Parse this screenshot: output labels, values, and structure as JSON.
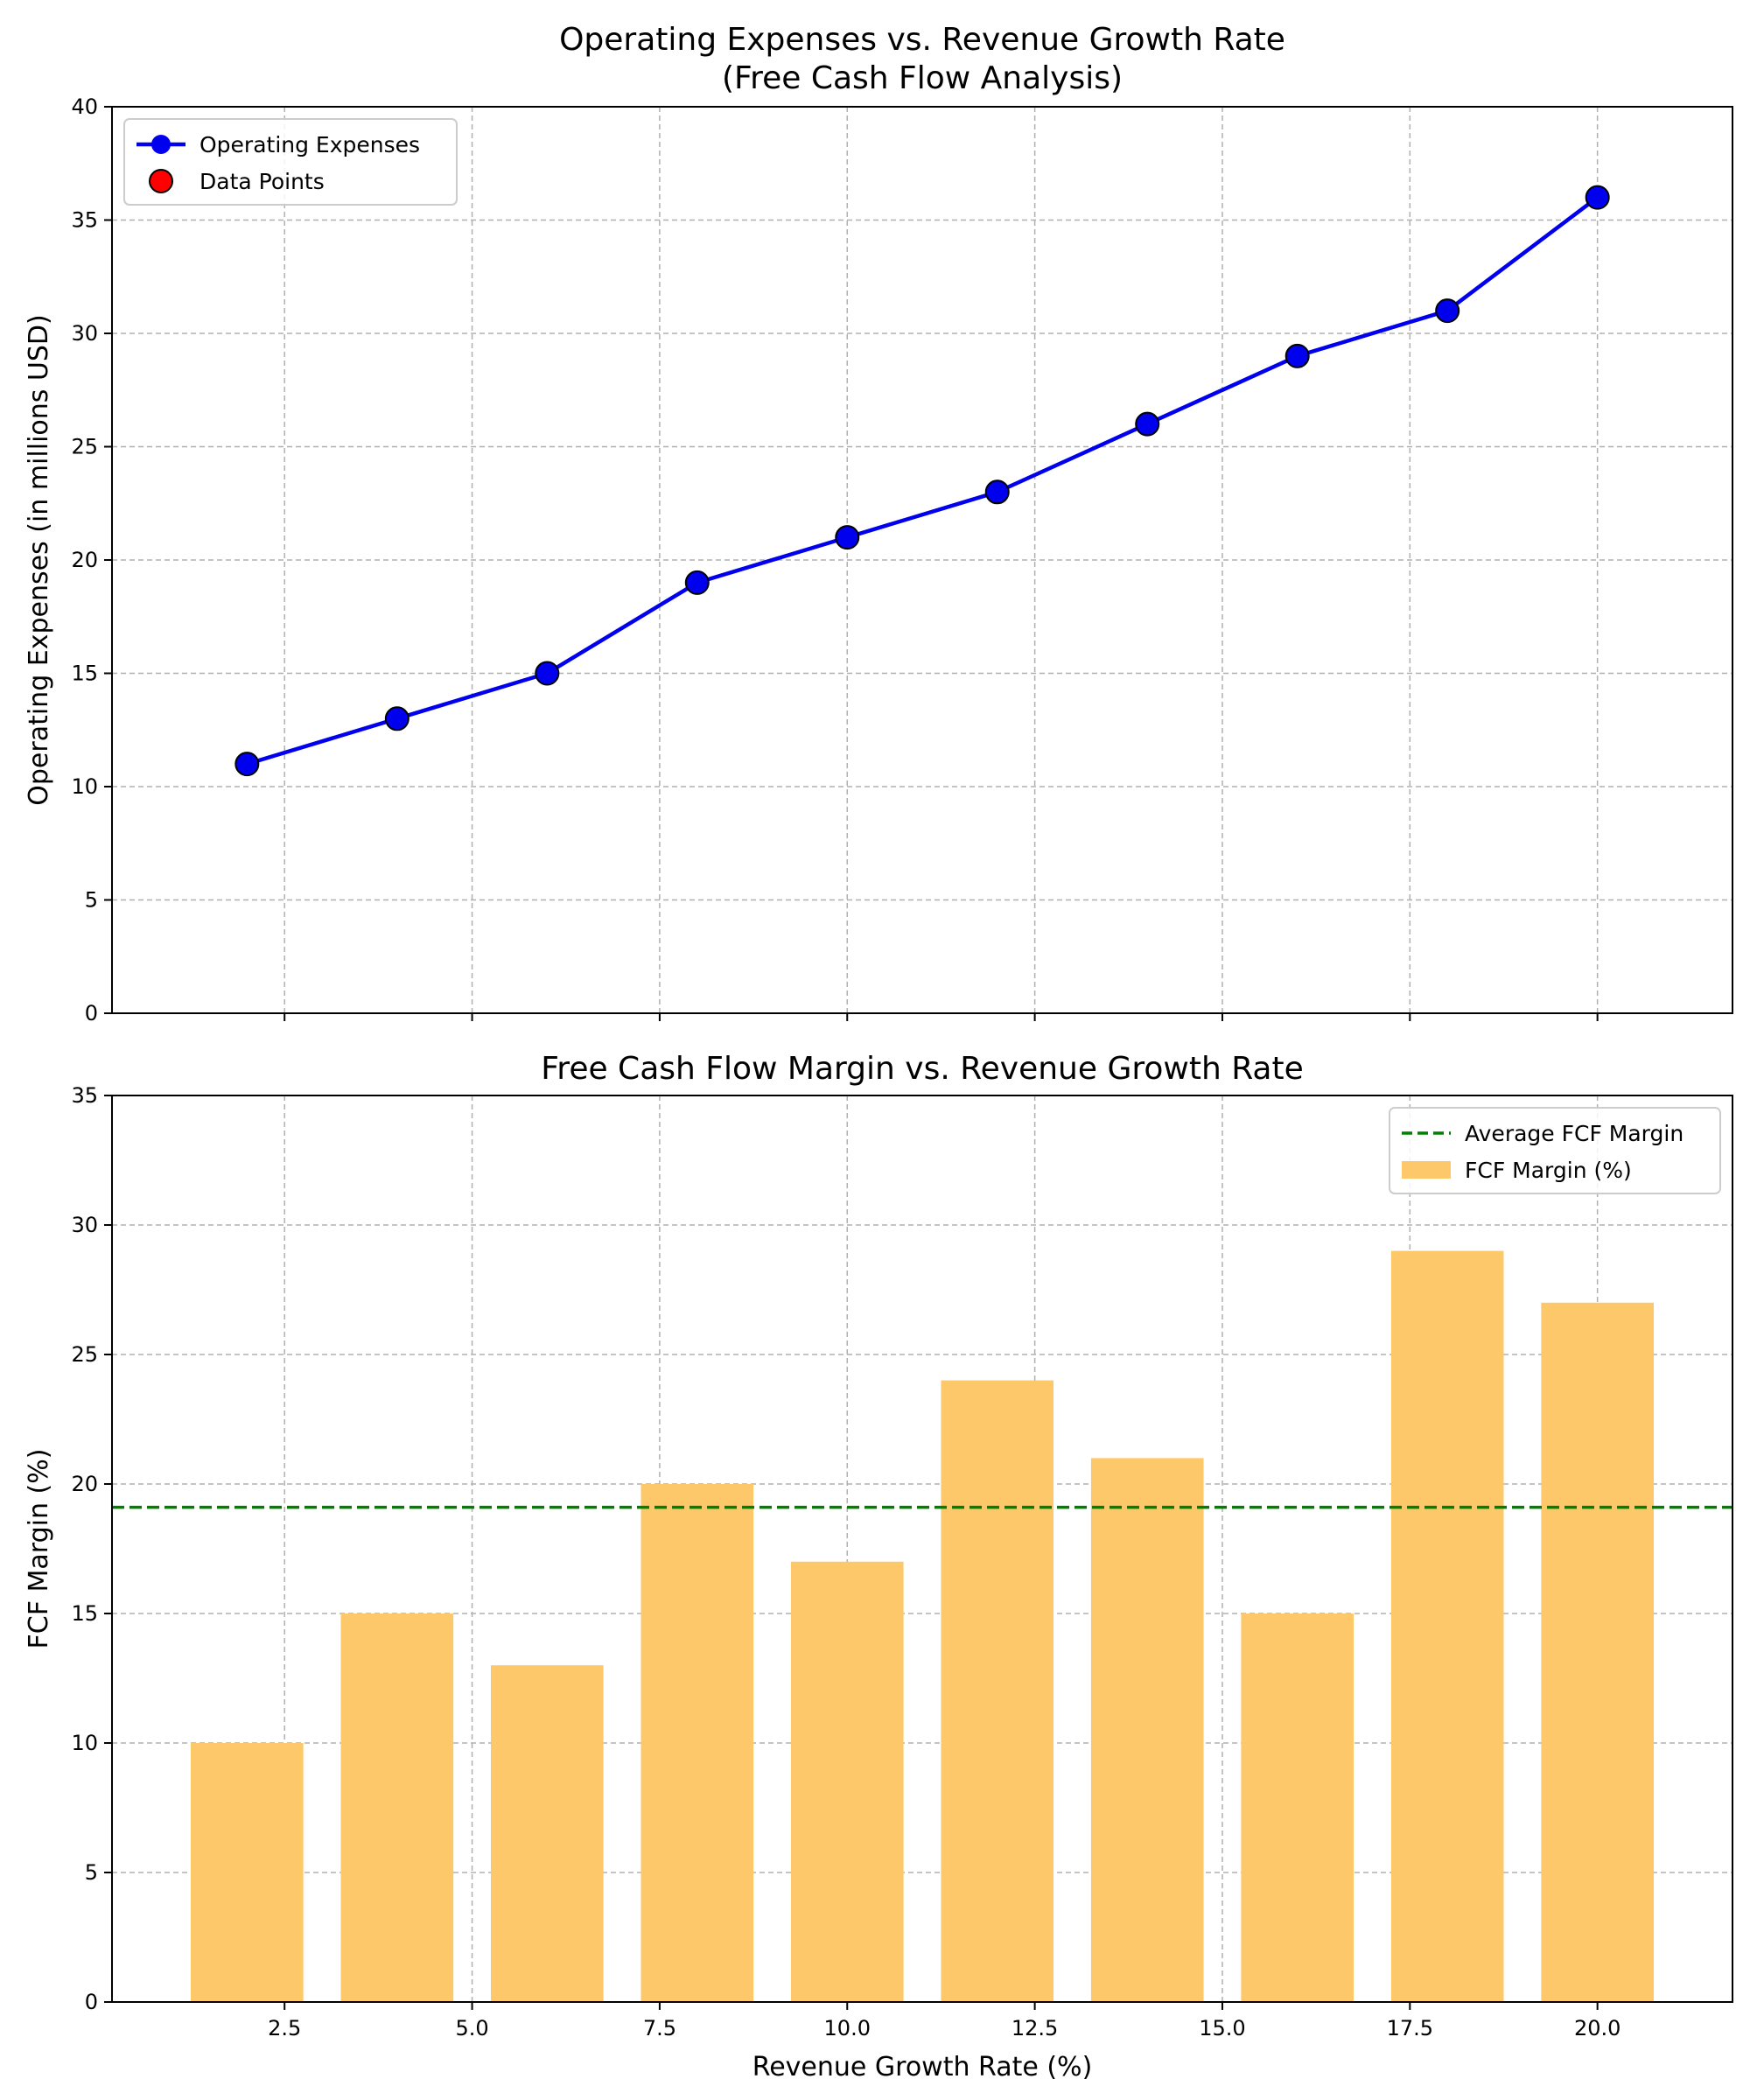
{
  "chart_data": [
    {
      "type": "line",
      "title": "Operating Expenses vs. Revenue Growth Rate\n(Free Cash Flow Analysis)",
      "xlabel": "",
      "ylabel": "Operating Expenses (in millions USD)",
      "xlim": [
        0.2,
        21.8
      ],
      "ylim": [
        0,
        40
      ],
      "x_ticks": [
        2.5,
        5.0,
        7.5,
        10.0,
        12.5,
        15.0,
        17.5,
        20.0
      ],
      "y_ticks": [
        0,
        5,
        10,
        15,
        20,
        25,
        30,
        35,
        40
      ],
      "y_tick_labels": [
        "0",
        "5",
        "10",
        "15",
        "20",
        "25",
        "30",
        "35",
        "40"
      ],
      "x_tick_labels_visible": false,
      "grid": true,
      "legend": "top-left",
      "x": [
        2,
        4,
        6,
        8,
        10,
        12,
        14,
        16,
        18,
        20
      ],
      "series": [
        {
          "name": "Operating Expenses",
          "values": [
            11,
            13,
            15,
            19,
            21,
            23,
            26,
            29,
            31,
            36
          ],
          "color": "#0000ee",
          "marker_color": "#0000ee"
        }
      ],
      "legend_entries": [
        {
          "label": "Operating Expenses",
          "kind": "line-marker",
          "color": "#0000ee"
        },
        {
          "label": "Data Points",
          "kind": "marker",
          "color": "#ff0000"
        }
      ]
    },
    {
      "type": "bar",
      "title": "Free Cash Flow Margin vs. Revenue Growth Rate",
      "xlabel": "Revenue Growth Rate (%)",
      "ylabel": "FCF Margin (%)",
      "xlim": [
        0.2,
        21.8
      ],
      "ylim": [
        0,
        35
      ],
      "x_ticks": [
        2.5,
        5.0,
        7.5,
        10.0,
        12.5,
        15.0,
        17.5,
        20.0
      ],
      "x_tick_labels": [
        "2.5",
        "5.0",
        "7.5",
        "10.0",
        "12.5",
        "15.0",
        "17.5",
        "20.0"
      ],
      "y_ticks": [
        0,
        5,
        10,
        15,
        20,
        25,
        30,
        35
      ],
      "y_tick_labels": [
        "0",
        "5",
        "10",
        "15",
        "20",
        "25",
        "30",
        "35"
      ],
      "grid": true,
      "legend": "top-right",
      "x": [
        2,
        4,
        6,
        8,
        10,
        12,
        14,
        16,
        18,
        20
      ],
      "bar_width": 1.5,
      "series": [
        {
          "name": "FCF Margin (%)",
          "values": [
            10,
            15,
            13,
            20,
            17,
            24,
            21,
            15,
            29,
            27
          ],
          "color": "#fcc869"
        }
      ],
      "reference_lines": [
        {
          "name": "Average FCF Margin",
          "y": 19.1,
          "color": "#008000",
          "style": "dashed"
        }
      ],
      "legend_entries": [
        {
          "label": "Average FCF Margin",
          "kind": "dashed-line",
          "color": "#008000"
        },
        {
          "label": "FCF Margin (%)",
          "kind": "patch",
          "color": "#fcc869"
        }
      ]
    }
  ]
}
